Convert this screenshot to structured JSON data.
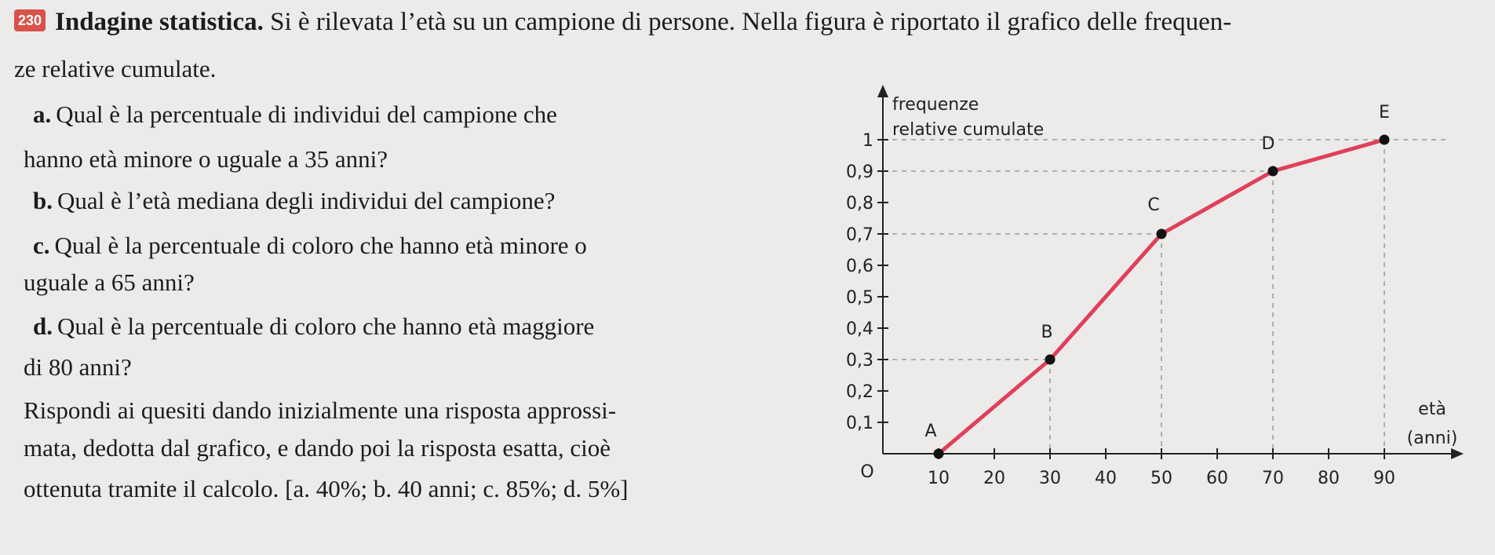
{
  "exercise_number": "230",
  "title": "Indagine statistica.",
  "intro_line1": "Si è rilevata l’età su un campione di persone. Nella figura è riportato il grafico delle frequen-",
  "intro_line2": "ze relative cumulate.",
  "questions": {
    "a": {
      "label": "a.",
      "line1": "Qual è la percentuale di individui del campione che",
      "line2": "hanno età minore o uguale a 35 anni?"
    },
    "b": {
      "label": "b.",
      "line1": "Qual è l’età mediana degli individui del campione?"
    },
    "c": {
      "label": "c.",
      "line1": "Qual è la percentuale di coloro che hanno età minore o",
      "line2": "uguale a 65 anni?"
    },
    "d": {
      "label": "d.",
      "line1": "Qual è la percentuale di coloro che hanno età maggiore",
      "line2": "di 80 anni?"
    }
  },
  "instruction_line1": "Rispondi ai quesiti dando inizialmente una risposta approssi-",
  "instruction_line2": "mata, dedotta dal grafico, e dando poi la risposta esatta, cioè",
  "instruction_line3": "ottenuta tramite il calcolo.",
  "answers": "[a. 40%; b. 40 anni; c. 85%; d. 5%]",
  "chart_data": {
    "type": "line",
    "ylabel_line1": "frequenze",
    "ylabel_line2": "relative cumulate",
    "xlabel_line1": "età",
    "xlabel_line2": "(anni)",
    "origin_label": "O",
    "x_ticks": [
      10,
      20,
      30,
      40,
      50,
      60,
      70,
      80,
      90
    ],
    "y_ticks": [
      {
        "value": 0.1,
        "label": "0,1"
      },
      {
        "value": 0.2,
        "label": "0,2"
      },
      {
        "value": 0.3,
        "label": "0,3"
      },
      {
        "value": 0.4,
        "label": "0,4"
      },
      {
        "value": 0.5,
        "label": "0,5"
      },
      {
        "value": 0.6,
        "label": "0,6"
      },
      {
        "value": 0.7,
        "label": "0,7"
      },
      {
        "value": 0.8,
        "label": "0,8"
      },
      {
        "value": 0.9,
        "label": "0,9"
      },
      {
        "value": 1,
        "label": "1"
      }
    ],
    "xlim": [
      0,
      100
    ],
    "ylim": [
      0,
      1.1
    ],
    "points": [
      {
        "label": "A",
        "x": 10,
        "y": 0
      },
      {
        "label": "B",
        "x": 30,
        "y": 0.3
      },
      {
        "label": "C",
        "x": 50,
        "y": 0.7
      },
      {
        "label": "D",
        "x": 70,
        "y": 0.9
      },
      {
        "label": "E",
        "x": 90,
        "y": 1
      }
    ],
    "line_color": "#e0405a"
  }
}
